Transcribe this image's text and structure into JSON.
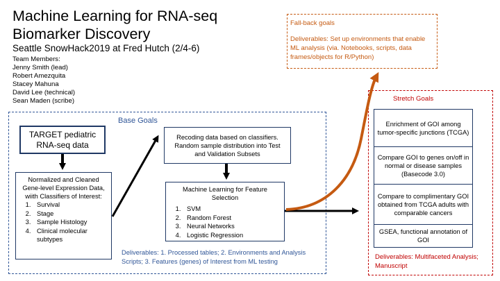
{
  "title": "Machine Learning for RNA-seq Biomarker Discovery",
  "subtitle": "Seattle SnowHack2019 at Fred Hutch (2/4-6)",
  "team": {
    "label": "Team Members:",
    "members": [
      "Jenny Smith (lead)",
      "Robert Amezquita",
      "Stacey Mahuna",
      "David Lee (technical)",
      "Sean Maden (scribe)"
    ]
  },
  "fallback": {
    "title": "Fall-back goals",
    "deliverables": "Deliverables: Set up environments that enable ML analysis (via. Notebooks, scripts, data frames/objects for R/Python)"
  },
  "base": {
    "title": "Base Goals",
    "target_box": "TARGET pediatric RNA-seq data",
    "normalized": {
      "heading": "Normalized and Cleaned Gene-level Expression Data, wiith Classifiers of Interest:",
      "items": [
        "Survival",
        "Stage",
        "Sample Histology",
        "Clinical molecular subtypes"
      ]
    },
    "recoding_box": "Recoding data based on classifiers. Random sample distribution into Test and Validation Subsets",
    "ml": {
      "heading": "Machine Learning for Feature Selection",
      "items": [
        "SVM",
        "Random Forest",
        "Neural Networks",
        "Logistic Regression"
      ]
    },
    "deliverables": "Deliverables: 1. Processed tables; 2. Environments and Analysis Scripts; 3. Features (genes) of Interest from ML testing"
  },
  "stretch": {
    "title": "Stretch Goals",
    "cells": [
      "Enrichment of GOI among tumor-specific junctions (TCGA)",
      "Compare GOI to genes on/off in normal or disease samples (Basecode 3.0)",
      "Compare to complimentary GOI obtained from TCGA adults with comparable cancers",
      "GSEA, functional annotation of GOI"
    ],
    "deliverables": "Deliverables: Multifaceted Analysis; Manuscript"
  },
  "colors": {
    "base": "#2f5597",
    "fallback": "#c55a11",
    "stretch": "#c00000",
    "box_border": "#1f3864"
  }
}
